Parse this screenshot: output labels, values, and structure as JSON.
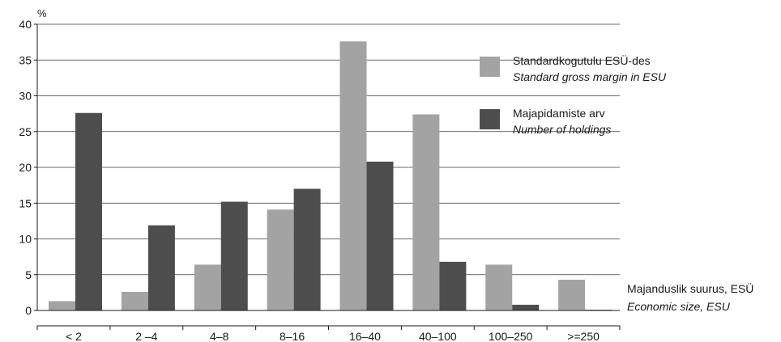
{
  "chart_data": {
    "type": "bar",
    "ylabel": "%",
    "xlabel": "Majanduslik suurus, ESÜ",
    "xlabel_en": "Economic size, ESU",
    "ylim": [
      0,
      40
    ],
    "yticks": [
      0,
      5,
      10,
      15,
      20,
      25,
      30,
      35,
      40
    ],
    "grid": "horizontal",
    "legend_position": "top-right",
    "categories": [
      "< 2",
      "2 –4",
      "4–8",
      "8–16",
      "16–40",
      "40–100",
      "100–250",
      ">=250"
    ],
    "series": [
      {
        "name": "Standardkogutulu ESÜ-des",
        "name_en": "Standard gross margin in ESU",
        "color": "#a3a3a3",
        "values": [
          1.3,
          2.6,
          6.4,
          14.1,
          37.6,
          27.4,
          6.4,
          4.3
        ]
      },
      {
        "name": "Majapidamiste arv",
        "name_en": "Number of holdings",
        "color": "#4d4d4d",
        "values": [
          27.6,
          11.9,
          15.2,
          17.0,
          20.8,
          6.8,
          0.8,
          0.1
        ]
      }
    ]
  }
}
